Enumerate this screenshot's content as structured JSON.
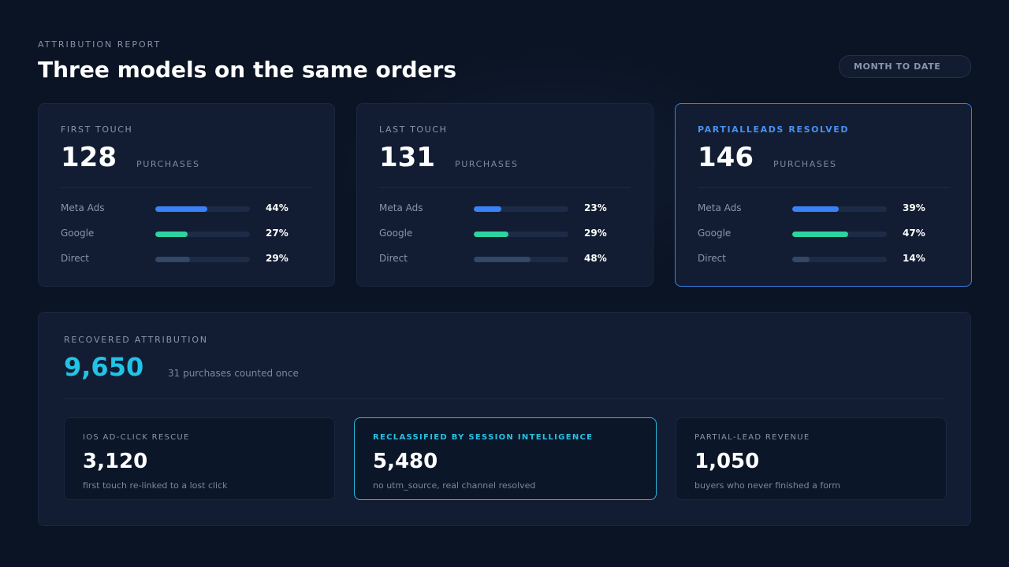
{
  "header": {
    "eyebrow": "ATTRIBUTION REPORT",
    "title": "Three models on the same orders",
    "period": "MONTH TO DATE"
  },
  "models": [
    {
      "label": "FIRST TOUCH",
      "value": "128",
      "unit": "PURCHASES",
      "rows": [
        {
          "name": "Meta Ads",
          "pct": "44%",
          "fraction": 0.55,
          "color": "#3b82f6"
        },
        {
          "name": "Google",
          "pct": "27%",
          "fraction": 0.34,
          "color": "#2dd4a0"
        },
        {
          "name": "Direct",
          "pct": "29%",
          "fraction": 0.37,
          "color": "#334766"
        }
      ]
    },
    {
      "label": "LAST TOUCH",
      "value": "131",
      "unit": "PURCHASES",
      "rows": [
        {
          "name": "Meta Ads",
          "pct": "23%",
          "fraction": 0.29,
          "color": "#3b82f6"
        },
        {
          "name": "Google",
          "pct": "29%",
          "fraction": 0.37,
          "color": "#2dd4a0"
        },
        {
          "name": "Direct",
          "pct": "48%",
          "fraction": 0.6,
          "color": "#334766"
        }
      ]
    },
    {
      "label": "PARTIALLEADS RESOLVED",
      "value": "146",
      "unit": "PURCHASES",
      "rows": [
        {
          "name": "Meta Ads",
          "pct": "39%",
          "fraction": 0.49,
          "color": "#3b82f6"
        },
        {
          "name": "Google",
          "pct": "47%",
          "fraction": 0.59,
          "color": "#2dd4a0"
        },
        {
          "name": "Direct",
          "pct": "14%",
          "fraction": 0.18,
          "color": "#334766"
        }
      ]
    }
  ],
  "recovered": {
    "label": "RECOVERED ATTRIBUTION",
    "value": "9,650",
    "note": "31 purchases counted once",
    "items": [
      {
        "label": "IOS AD-CLICK RESCUE",
        "value": "3,120",
        "desc": "first touch re-linked to a lost click"
      },
      {
        "label": "RECLASSIFIED BY SESSION INTELLIGENCE",
        "value": "5,480",
        "desc": "no utm_source, real channel resolved"
      },
      {
        "label": "PARTIAL-LEAD REVENUE",
        "value": "1,050",
        "desc": "buyers who never finished a form"
      }
    ]
  },
  "colors": {
    "accent_blue": "#3b82f6",
    "accent_teal": "#2dd4a0",
    "accent_cyan": "#22c3e6",
    "muted_bar": "#334766"
  }
}
